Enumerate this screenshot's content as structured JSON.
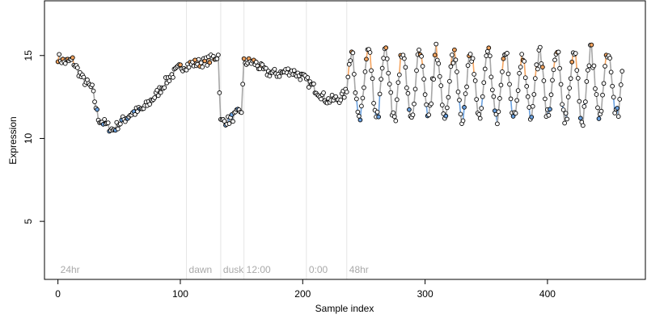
{
  "chart_data": {
    "type": "scatter",
    "xlabel": "Sample index",
    "ylabel": "Expression",
    "xlim": [
      -11,
      480
    ],
    "ylim": [
      1.5,
      18.3
    ],
    "x_ticks": [
      0,
      100,
      200,
      300,
      400
    ],
    "y_ticks": [
      5,
      10,
      15
    ],
    "grid": false,
    "vertical_markers": [
      {
        "x": 0,
        "label": "24hr",
        "line": false
      },
      {
        "x": 105,
        "label": "dawn",
        "line": true
      },
      {
        "x": 133,
        "label": "dusk",
        "line": true
      },
      {
        "x": 152,
        "label": "12:00",
        "line": true
      },
      {
        "x": 203,
        "label": "0:00",
        "line": true
      },
      {
        "x": 236,
        "label": "48hr",
        "line": true
      }
    ],
    "n_points": 462,
    "series": [
      {
        "name": "",
        "role": "observed expression (open points)"
      }
    ],
    "key_points": [
      [
        0,
        14.9
      ],
      [
        5,
        14.6
      ],
      [
        12,
        14.7
      ],
      [
        20,
        13.6
      ],
      [
        28,
        13.0
      ],
      [
        33,
        11.2
      ],
      [
        45,
        10.5
      ],
      [
        50,
        10.9
      ],
      [
        60,
        11.5
      ],
      [
        70,
        11.8
      ],
      [
        80,
        12.6
      ],
      [
        90,
        13.6
      ],
      [
        100,
        14.3
      ],
      [
        110,
        14.5
      ],
      [
        120,
        14.6
      ],
      [
        131,
        15.0
      ],
      [
        133,
        11.0
      ],
      [
        140,
        11.1
      ],
      [
        150,
        11.7
      ],
      [
        152,
        14.6
      ],
      [
        160,
        14.6
      ],
      [
        170,
        14.0
      ],
      [
        180,
        13.9
      ],
      [
        190,
        14.1
      ],
      [
        200,
        13.7
      ],
      [
        210,
        13.0
      ],
      [
        220,
        12.3
      ],
      [
        230,
        12.4
      ],
      [
        236,
        12.8
      ]
    ],
    "oscillation": {
      "x_start": 236,
      "x_end": 462,
      "period": 14,
      "center": 13.2,
      "amplitude": 2.0
    },
    "colors": {
      "point_face": "#ffffff",
      "point_edge": "#000000",
      "line": "#a6a6a6",
      "high_accent": "#f4a460",
      "low_accent": "#6aa1e0",
      "marker_line": "#e6e6e6",
      "marker_text": "#a9a9a9"
    }
  }
}
